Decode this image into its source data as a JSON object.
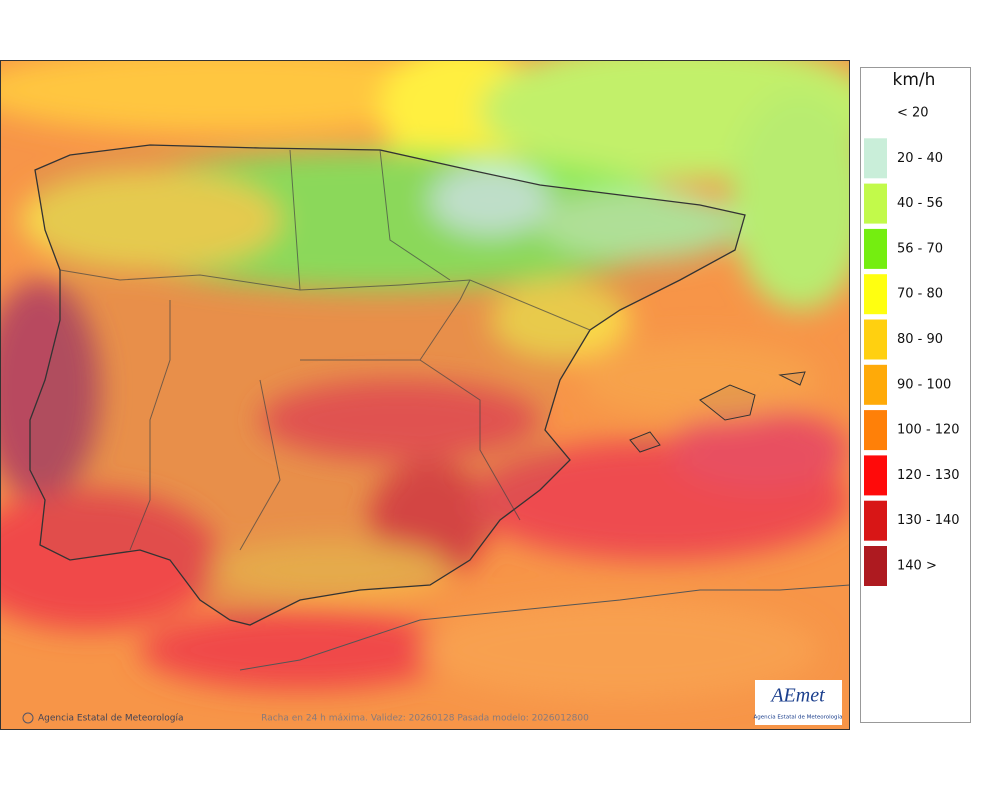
{
  "legend": {
    "title": "km/h",
    "items": [
      {
        "label": "< 20"
      },
      {
        "label": "20 - 40",
        "color": "#c9eed9"
      },
      {
        "label": "40 - 56",
        "color": "#c2fa4a"
      },
      {
        "label": "56 - 70",
        "color": "#74ee10"
      },
      {
        "label": "70 - 80",
        "color": "#ffff10"
      },
      {
        "label": "80 - 90",
        "color": "#ffd010"
      },
      {
        "label": "90 - 100",
        "color": "#ffaa08"
      },
      {
        "label": "100 - 120",
        "color": "#ff8008"
      },
      {
        "label": "120 - 130",
        "color": "#ff0a0a"
      },
      {
        "label": "130 - 140",
        "color": "#d81616"
      },
      {
        "label": "140 >",
        "color": "#ae1a20"
      }
    ]
  },
  "footer": {
    "credit": "Agencia Estatal de Meteorología",
    "caption": "Racha en 24 h máxima. Validez: 20260128 Pasada modelo: 2026012800"
  },
  "logo": {
    "name": "AEmet",
    "subtitle": "Agencia Estatal de Meteorología"
  }
}
